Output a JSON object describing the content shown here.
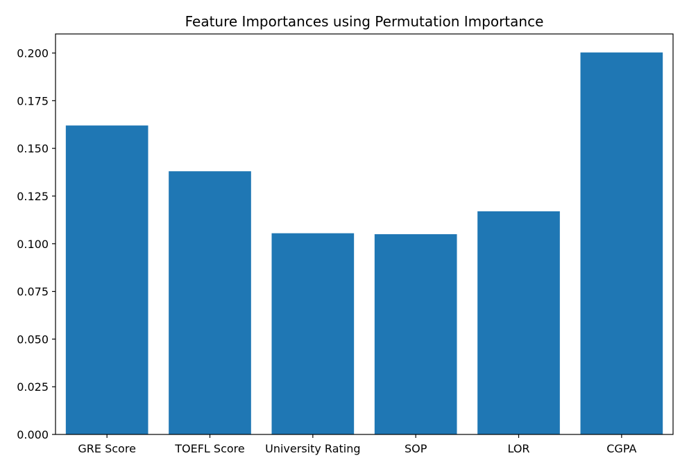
{
  "chart_data": {
    "type": "bar",
    "title": "Feature Importances using Permutation Importance",
    "xlabel": "",
    "ylabel": "",
    "categories": [
      "GRE Score",
      "TOEFL Score",
      "University Rating",
      "SOP",
      "LOR",
      "CGPA"
    ],
    "values": [
      0.162,
      0.138,
      0.1055,
      0.105,
      0.117,
      0.2003
    ],
    "ylim": [
      0,
      0.21
    ],
    "yticks": [
      "0.000",
      "0.025",
      "0.050",
      "0.075",
      "0.100",
      "0.125",
      "0.150",
      "0.175",
      "0.200"
    ],
    "bar_color": "#1f77b4",
    "grid": false,
    "legend": "none"
  }
}
